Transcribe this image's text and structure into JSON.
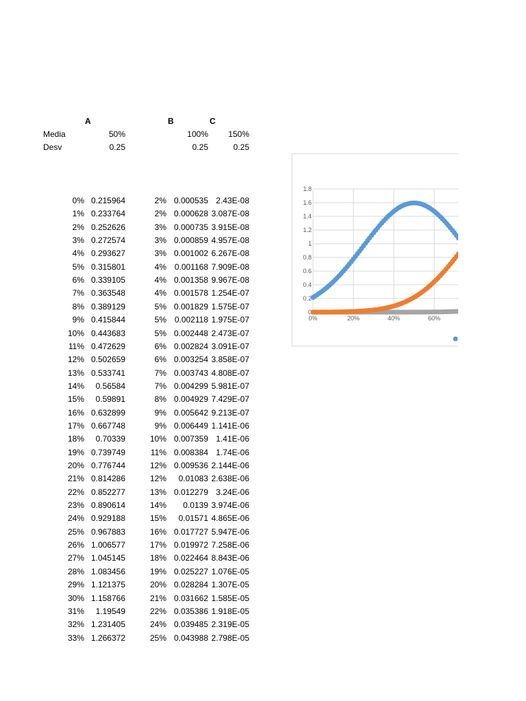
{
  "headers": {
    "a": "A",
    "b": "B",
    "c": "C"
  },
  "params": {
    "media_label": "Media",
    "desv_label": "Desv",
    "a_media": "50%",
    "b_media": "100%",
    "c_media": "150%",
    "a_desv": "0.25",
    "b_desv": "0.25",
    "c_desv": "0.25"
  },
  "rows": [
    [
      "0%",
      "0.215964",
      "2%",
      "0.000535",
      "2.43E-08"
    ],
    [
      "1%",
      "0.233764",
      "2%",
      "0.000628",
      "3.087E-08"
    ],
    [
      "2%",
      "0.252626",
      "3%",
      "0.000735",
      "3.915E-08"
    ],
    [
      "3%",
      "0.272574",
      "3%",
      "0.000859",
      "4.957E-08"
    ],
    [
      "4%",
      "0.293627",
      "3%",
      "0.001002",
      "6.267E-08"
    ],
    [
      "5%",
      "0.315801",
      "4%",
      "0.001168",
      "7.909E-08"
    ],
    [
      "6%",
      "0.339105",
      "4%",
      "0.001358",
      "9.967E-08"
    ],
    [
      "7%",
      "0.363548",
      "4%",
      "0.001578",
      "1.254E-07"
    ],
    [
      "8%",
      "0.389129",
      "5%",
      "0.001829",
      "1.575E-07"
    ],
    [
      "9%",
      "0.415844",
      "5%",
      "0.002118",
      "1.975E-07"
    ],
    [
      "10%",
      "0.443683",
      "5%",
      "0.002448",
      "2.473E-07"
    ],
    [
      "11%",
      "0.472629",
      "6%",
      "0.002824",
      "3.091E-07"
    ],
    [
      "12%",
      "0.502659",
      "6%",
      "0.003254",
      "3.858E-07"
    ],
    [
      "13%",
      "0.533741",
      "7%",
      "0.003743",
      "4.808E-07"
    ],
    [
      "14%",
      "0.56584",
      "7%",
      "0.004299",
      "5.981E-07"
    ],
    [
      "15%",
      "0.59891",
      "8%",
      "0.004929",
      "7.429E-07"
    ],
    [
      "16%",
      "0.632899",
      "9%",
      "0.005642",
      "9.213E-07"
    ],
    [
      "17%",
      "0.667748",
      "9%",
      "0.006449",
      "1.141E-06"
    ],
    [
      "18%",
      "0.70339",
      "10%",
      "0.007359",
      "1.41E-06"
    ],
    [
      "19%",
      "0.739749",
      "11%",
      "0.008384",
      "1.74E-06"
    ],
    [
      "20%",
      "0.776744",
      "12%",
      "0.009536",
      "2.144E-06"
    ],
    [
      "21%",
      "0.814286",
      "12%",
      "0.01083",
      "2.638E-06"
    ],
    [
      "22%",
      "0.852277",
      "13%",
      "0.012279",
      "3.24E-06"
    ],
    [
      "23%",
      "0.890614",
      "14%",
      "0.0139",
      "3.974E-06"
    ],
    [
      "24%",
      "0.929188",
      "15%",
      "0.01571",
      "4.865E-06"
    ],
    [
      "25%",
      "0.967883",
      "16%",
      "0.017727",
      "5.947E-06"
    ],
    [
      "26%",
      "1.006577",
      "17%",
      "0.019972",
      "7.258E-06"
    ],
    [
      "27%",
      "1.045145",
      "18%",
      "0.022464",
      "8.843E-06"
    ],
    [
      "28%",
      "1.083456",
      "19%",
      "0.025227",
      "1.076E-05"
    ],
    [
      "29%",
      "1.121375",
      "20%",
      "0.028284",
      "1.307E-05"
    ],
    [
      "30%",
      "1.158766",
      "21%",
      "0.031662",
      "1.585E-05"
    ],
    [
      "31%",
      "1.19549",
      "22%",
      "0.035386",
      "1.918E-05"
    ],
    [
      "32%",
      "1.231405",
      "24%",
      "0.039485",
      "2.319E-05"
    ],
    [
      "33%",
      "1.266372",
      "25%",
      "0.043988",
      "2.798E-05"
    ]
  ],
  "chart_data": {
    "type": "scatter",
    "y_ticks": [
      "0",
      "0.2",
      "0.4",
      "0.6",
      "0.8",
      "1",
      "1.2",
      "1.4",
      "1.6",
      "1.8"
    ],
    "x_ticks": [
      "0%",
      "20%",
      "40%",
      "60%"
    ],
    "xlim": [
      0,
      0.72
    ],
    "ylim": [
      0,
      1.8
    ],
    "grid": true,
    "colors": {
      "blue": "#5b9bd5",
      "orange": "#ed7d31",
      "gray": "#a5a5a5"
    },
    "series": [
      {
        "mean": 0.5,
        "sd": 0.25,
        "color": "#5b9bd5"
      },
      {
        "mean": 1.0,
        "sd": 0.25,
        "color": "#ed7d31"
      },
      {
        "mean": 1.5,
        "sd": 0.25,
        "color": "#a5a5a5"
      }
    ]
  }
}
